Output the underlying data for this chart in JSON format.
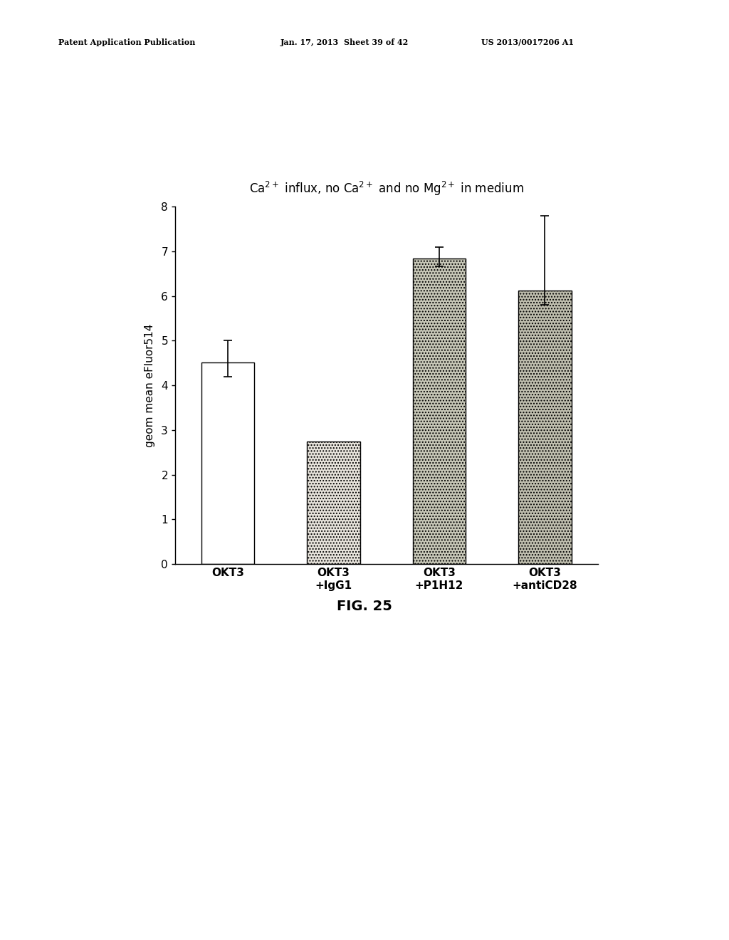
{
  "title": "Ca$^{2+}$ influx, no Ca$^{2+}$ and no Mg$^{2+}$ in medium",
  "ylabel": "geom mean eFluor514",
  "fig_caption": "FIG. 25",
  "patent_line1": "Patent Application Publication",
  "patent_line2": "Jan. 17, 2013  Sheet 39 of 42",
  "patent_line3": "US 2013/0017206 A1",
  "categories": [
    "OKT3",
    "OKT3\n+IgG1",
    "OKT3\n+P1H12",
    "OKT3\n+antiCD28"
  ],
  "values": [
    4.52,
    2.75,
    6.85,
    6.12
  ],
  "errors_upper": [
    0.48,
    0.0,
    0.25,
    1.68
  ],
  "errors_lower": [
    0.32,
    0.0,
    0.18,
    0.32
  ],
  "bar_colors": [
    "#ffffff",
    "#e8e4dc",
    "#c8c8b8",
    "#c0bfaf"
  ],
  "bar_edge_colors": [
    "#000000",
    "#000000",
    "#000000",
    "#000000"
  ],
  "bar_hatches": [
    null,
    "....",
    "....",
    "...."
  ],
  "ylim": [
    0,
    8
  ],
  "yticks": [
    0,
    1,
    2,
    3,
    4,
    5,
    6,
    7,
    8
  ],
  "title_fontsize": 12,
  "ylabel_fontsize": 11,
  "tick_fontsize": 11,
  "xtick_fontsize": 11,
  "caption_fontsize": 14,
  "header_fontsize": 8,
  "background_color": "#ffffff"
}
